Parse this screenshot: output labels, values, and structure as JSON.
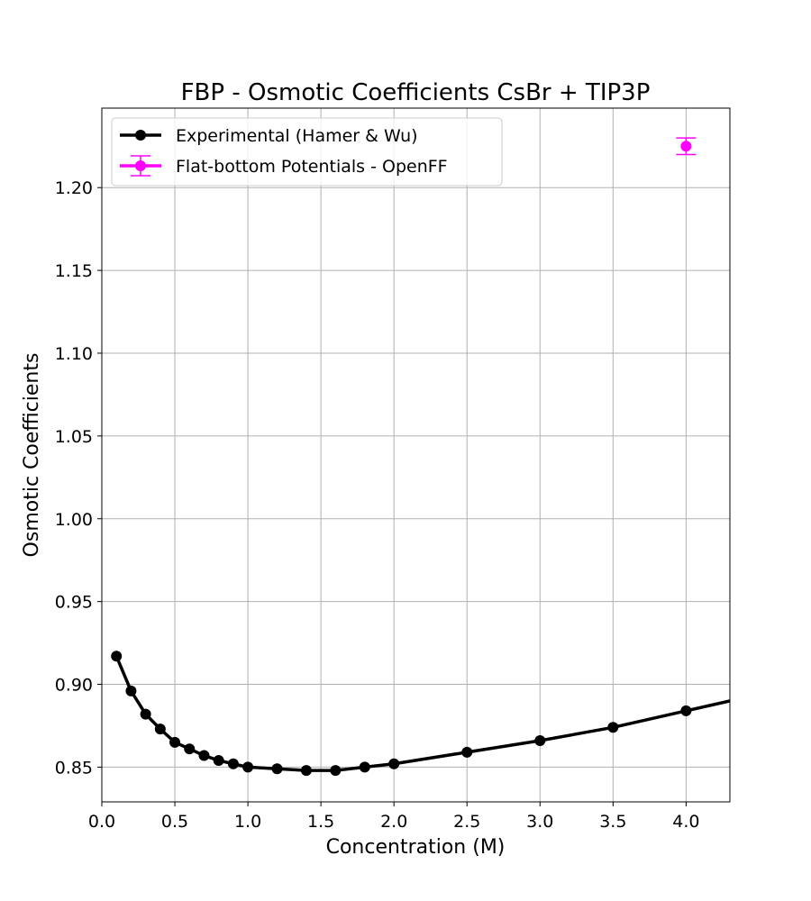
{
  "chart_data": {
    "type": "line",
    "title": "FBP - Osmotic Coefficients CsBr + TIP3P",
    "xlabel": "Concentration (M)",
    "ylabel": "Osmotic Coefficients",
    "xlim": [
      0.0,
      4.3
    ],
    "ylim": [
      0.829,
      1.248
    ],
    "xticks": [
      0.0,
      0.5,
      1.0,
      1.5,
      2.0,
      2.5,
      3.0,
      3.5,
      4.0
    ],
    "xtick_labels": [
      "0.0",
      "0.5",
      "1.0",
      "1.5",
      "2.0",
      "2.5",
      "3.0",
      "3.5",
      "4.0"
    ],
    "yticks": [
      0.85,
      0.9,
      0.95,
      1.0,
      1.05,
      1.1,
      1.15,
      1.2
    ],
    "ytick_labels": [
      "0.85",
      "0.90",
      "0.95",
      "1.00",
      "1.05",
      "1.10",
      "1.15",
      "1.20"
    ],
    "grid": true,
    "legend_position": "top-left",
    "series": [
      {
        "name": "Experimental (Hamer & Wu)",
        "color": "#000000",
        "marker": "circle",
        "line": true,
        "x": [
          0.1,
          0.2,
          0.3,
          0.4,
          0.5,
          0.6,
          0.7,
          0.8,
          0.9,
          1.0,
          1.2,
          1.4,
          1.6,
          1.8,
          2.0,
          2.5,
          3.0,
          3.5,
          4.0,
          4.5
        ],
        "y": [
          0.917,
          0.896,
          0.882,
          0.873,
          0.865,
          0.861,
          0.857,
          0.854,
          0.852,
          0.85,
          0.849,
          0.848,
          0.848,
          0.85,
          0.852,
          0.859,
          0.866,
          0.874,
          0.884,
          0.894
        ]
      },
      {
        "name": "Flat-bottom Potentials - OpenFF",
        "color": "#ff00ff",
        "marker": "circle",
        "line": false,
        "x": [
          4.0
        ],
        "y": [
          1.225
        ],
        "yerr": [
          0.005
        ]
      }
    ]
  }
}
